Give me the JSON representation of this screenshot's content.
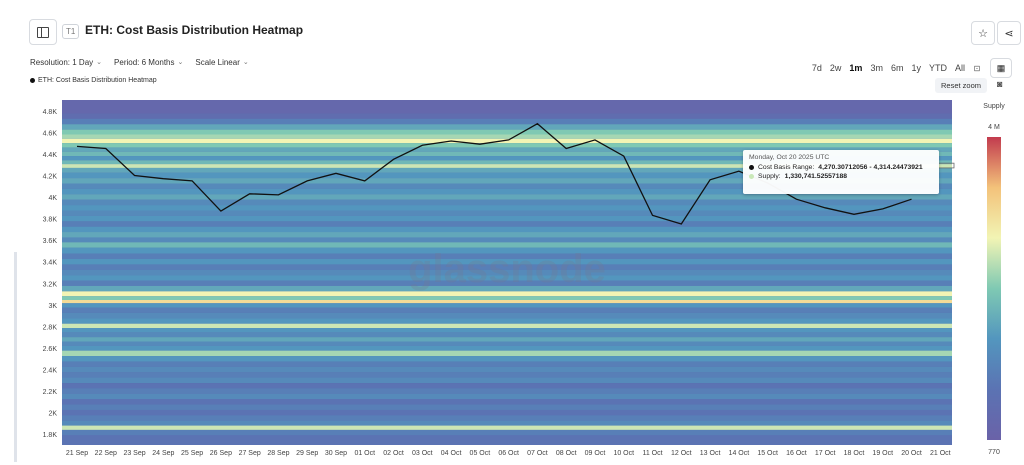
{
  "header": {
    "tier_badge": "T1",
    "title": "ETH: Cost Basis Distribution Heatmap",
    "icons": [
      "sidebar-toggle-icon",
      "star-icon",
      "share-icon"
    ]
  },
  "controls": {
    "resolution": "Resolution: 1 Day",
    "period": "Period: 6 Months",
    "scale": "Scale Linear"
  },
  "range_buttons": [
    "7d",
    "2w",
    "1m",
    "3m",
    "6m",
    "1y",
    "YTD",
    "All"
  ],
  "active_range": "1m",
  "legend_label": "ETH: Cost Basis Distribution Heatmap",
  "reset_zoom": "Reset zoom",
  "tooltip": {
    "date": "Monday, Oct 20 2025 UTC",
    "row1_label": "Cost Basis Range:",
    "row1_value": "4,270.30712056 - 4,314.24473921",
    "row2_label": "Supply:",
    "row2_value": "1,330,741.52557188"
  },
  "watermark": "glassnode",
  "colors": {
    "line": "#111111",
    "scale_high": "#c23b4e",
    "scale_mid_high": "#f3c27a",
    "scale_mid": "#f2f4b4",
    "scale_mid_low": "#7fc9b3",
    "scale_low": "#5b73b3",
    "scale_lowest": "#6a62a8"
  },
  "chart_data": {
    "type": "heatmap",
    "title": "ETH: Cost Basis Distribution Heatmap",
    "x": [
      "21 Sep",
      "22 Sep",
      "23 Sep",
      "24 Sep",
      "25 Sep",
      "26 Sep",
      "27 Sep",
      "28 Sep",
      "29 Sep",
      "30 Sep",
      "01 Oct",
      "02 Oct",
      "03 Oct",
      "04 Oct",
      "05 Oct",
      "06 Oct",
      "07 Oct",
      "08 Oct",
      "09 Oct",
      "10 Oct",
      "11 Oct",
      "12 Oct",
      "13 Oct",
      "14 Oct",
      "15 Oct",
      "16 Oct",
      "17 Oct",
      "18 Oct",
      "19 Oct",
      "20 Oct",
      "21 Oct"
    ],
    "ylim": [
      1700,
      4900
    ],
    "y_ticks": [
      1800,
      2000,
      2200,
      2400,
      2600,
      2800,
      3000,
      3200,
      3400,
      3600,
      3800,
      4000,
      4200,
      4400,
      4600,
      4800
    ],
    "y_tick_labels": [
      "1.8K",
      "2K",
      "2.2K",
      "2.4K",
      "2.6K",
      "2.8K",
      "3K",
      "3.2K",
      "3.4K",
      "3.6K",
      "3.8K",
      "4K",
      "4.2K",
      "4.4K",
      "4.6K",
      "4.8K"
    ],
    "series": [
      {
        "name": "ETH: Cost Basis Distribution Heatmap",
        "values": [
          4470,
          4450,
          4200,
          4170,
          4150,
          3870,
          4030,
          4020,
          4150,
          4220,
          4150,
          4350,
          4480,
          4520,
          4490,
          4530,
          4680,
          4450,
          4530,
          4380,
          3830,
          3750,
          4160,
          4240,
          4130,
          3980,
          3900,
          3840,
          3890,
          3980,
          3980
        ]
      }
    ],
    "colorbar": {
      "label": "Supply",
      "max_label": "4 M",
      "min_label": "770"
    },
    "supply_bands": [
      {
        "y": 4800,
        "level": 0.05
      },
      {
        "y": 4750,
        "level": 0.1
      },
      {
        "y": 4700,
        "level": 0.2
      },
      {
        "y": 4650,
        "level": 0.35
      },
      {
        "y": 4600,
        "level": 0.45
      },
      {
        "y": 4560,
        "level": 0.5
      },
      {
        "y": 4520,
        "level": 0.6
      },
      {
        "y": 4480,
        "level": 0.45
      },
      {
        "y": 4440,
        "level": 0.35
      },
      {
        "y": 4400,
        "level": 0.4
      },
      {
        "y": 4360,
        "level": 0.3
      },
      {
        "y": 4320,
        "level": 0.4
      },
      {
        "y": 4290,
        "level": 0.55
      },
      {
        "y": 4250,
        "level": 0.35
      },
      {
        "y": 4200,
        "level": 0.3
      },
      {
        "y": 4150,
        "level": 0.35
      },
      {
        "y": 4100,
        "level": 0.25
      },
      {
        "y": 4050,
        "level": 0.3
      },
      {
        "y": 4000,
        "level": 0.35
      },
      {
        "y": 3950,
        "level": 0.25
      },
      {
        "y": 3900,
        "level": 0.3
      },
      {
        "y": 3850,
        "level": 0.25
      },
      {
        "y": 3800,
        "level": 0.3
      },
      {
        "y": 3750,
        "level": 0.2
      },
      {
        "y": 3700,
        "level": 0.3
      },
      {
        "y": 3650,
        "level": 0.35
      },
      {
        "y": 3600,
        "level": 0.25
      },
      {
        "y": 3560,
        "level": 0.4
      },
      {
        "y": 3500,
        "level": 0.3
      },
      {
        "y": 3450,
        "level": 0.2
      },
      {
        "y": 3400,
        "level": 0.3
      },
      {
        "y": 3350,
        "level": 0.2
      },
      {
        "y": 3300,
        "level": 0.25
      },
      {
        "y": 3250,
        "level": 0.3
      },
      {
        "y": 3200,
        "level": 0.2
      },
      {
        "y": 3150,
        "level": 0.35
      },
      {
        "y": 3100,
        "level": 0.6
      },
      {
        "y": 3060,
        "level": 0.45
      },
      {
        "y": 3030,
        "level": 0.7
      },
      {
        "y": 3000,
        "level": 0.3
      },
      {
        "y": 2950,
        "level": 0.2
      },
      {
        "y": 2900,
        "level": 0.25
      },
      {
        "y": 2850,
        "level": 0.3
      },
      {
        "y": 2800,
        "level": 0.55
      },
      {
        "y": 2770,
        "level": 0.3
      },
      {
        "y": 2720,
        "level": 0.25
      },
      {
        "y": 2680,
        "level": 0.35
      },
      {
        "y": 2640,
        "level": 0.25
      },
      {
        "y": 2600,
        "level": 0.3
      },
      {
        "y": 2550,
        "level": 0.5
      },
      {
        "y": 2500,
        "level": 0.3
      },
      {
        "y": 2450,
        "level": 0.2
      },
      {
        "y": 2400,
        "level": 0.25
      },
      {
        "y": 2350,
        "level": 0.2
      },
      {
        "y": 2300,
        "level": 0.25
      },
      {
        "y": 2250,
        "level": 0.15
      },
      {
        "y": 2200,
        "level": 0.2
      },
      {
        "y": 2150,
        "level": 0.25
      },
      {
        "y": 2100,
        "level": 0.15
      },
      {
        "y": 2050,
        "level": 0.2
      },
      {
        "y": 2000,
        "level": 0.15
      },
      {
        "y": 1950,
        "level": 0.2
      },
      {
        "y": 1900,
        "level": 0.25
      },
      {
        "y": 1860,
        "level": 0.55
      },
      {
        "y": 1820,
        "level": 0.2
      },
      {
        "y": 1760,
        "level": 0.15
      }
    ]
  }
}
